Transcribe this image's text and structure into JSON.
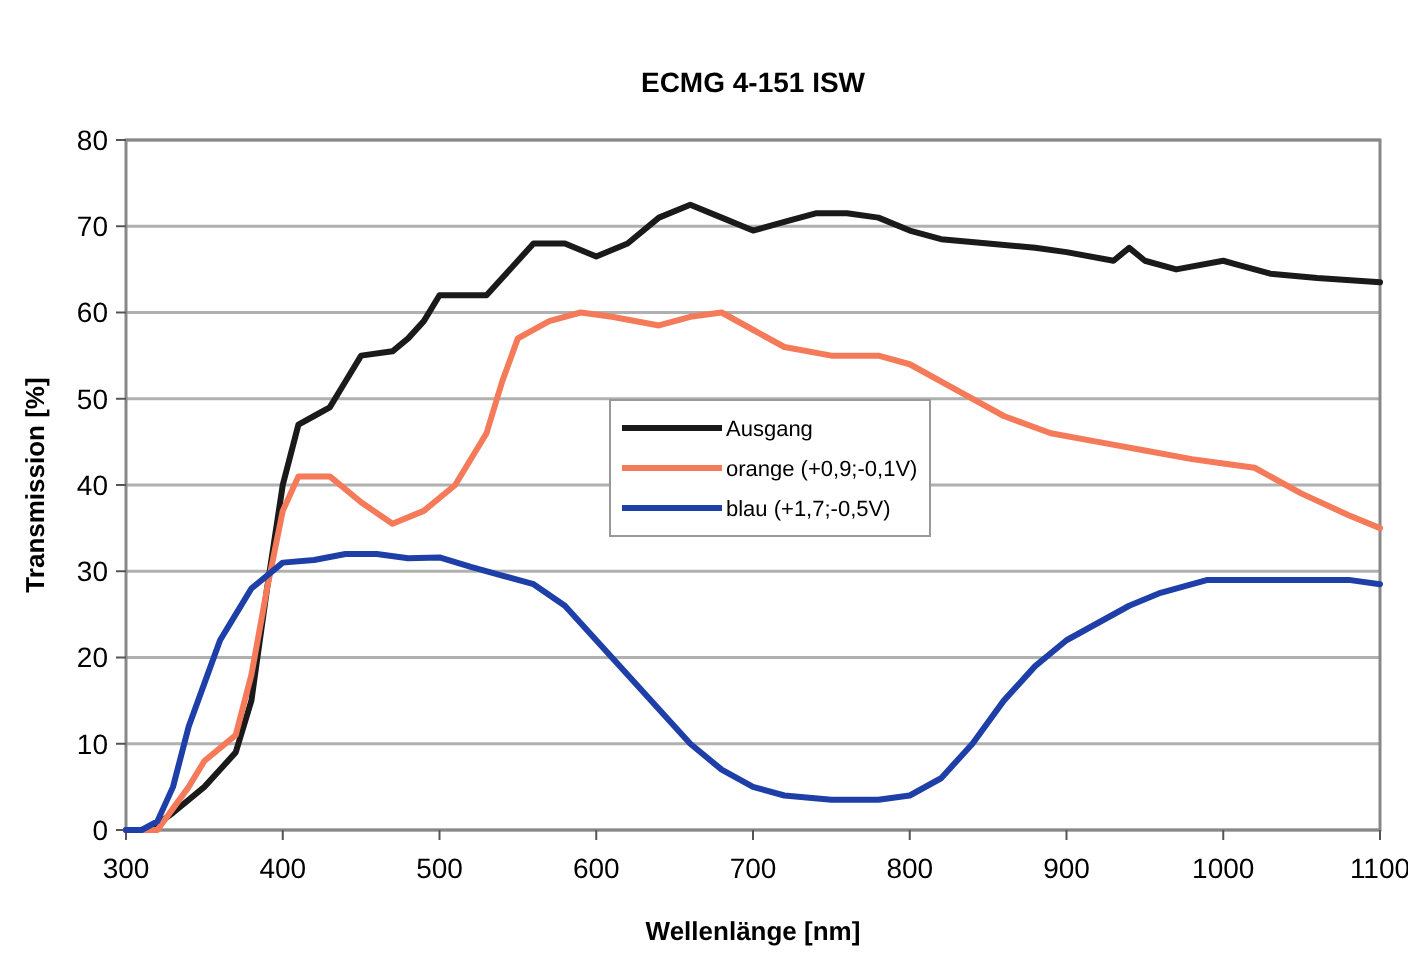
{
  "chart_data": {
    "type": "line",
    "title": "ECMG 4-151 ISW",
    "xlabel": "Wellenlänge [nm]",
    "ylabel": "Transmission [%]",
    "xlim": [
      300,
      1100
    ],
    "xticks": [
      300,
      400,
      500,
      600,
      700,
      800,
      900,
      1000,
      1100
    ],
    "ylim": [
      0,
      80
    ],
    "yticks": [
      0,
      10,
      20,
      30,
      40,
      50,
      60,
      70,
      80
    ],
    "grid": "y",
    "legend": "center",
    "line_style": "solid",
    "marker": "none",
    "series": [
      {
        "name": "Ausgang",
        "color": "#1a1a1a",
        "x": [
          300,
          315,
          330,
          350,
          370,
          380,
          390,
          400,
          410,
          420,
          430,
          440,
          450,
          470,
          480,
          490,
          500,
          520,
          530,
          540,
          560,
          580,
          600,
          620,
          640,
          660,
          680,
          700,
          720,
          740,
          760,
          780,
          800,
          820,
          850,
          880,
          900,
          930,
          940,
          950,
          970,
          1000,
          1010,
          1030,
          1060,
          1100
        ],
        "values": [
          0,
          0,
          2,
          5,
          9,
          15,
          28,
          40,
          47,
          48,
          49,
          52,
          55,
          55.5,
          57,
          59,
          62,
          62,
          62,
          64,
          68,
          68,
          66.5,
          68,
          71,
          72.5,
          71,
          69.5,
          70.5,
          71.5,
          71.5,
          71,
          69.5,
          68.5,
          68,
          67.5,
          67,
          66,
          67.5,
          66,
          65,
          66,
          65.5,
          64.5,
          64,
          63.5
        ]
      },
      {
        "name": "orange (+0,9;-0,1V)",
        "color": "#f47a5a",
        "x": [
          300,
          320,
          340,
          350,
          370,
          380,
          390,
          400,
          410,
          430,
          450,
          470,
          490,
          510,
          530,
          540,
          550,
          570,
          590,
          610,
          640,
          660,
          680,
          700,
          720,
          750,
          780,
          800,
          830,
          860,
          890,
          920,
          950,
          980,
          1000,
          1020,
          1050,
          1080,
          1100
        ],
        "values": [
          0,
          0,
          5,
          8,
          11,
          18,
          28,
          37,
          41,
          41,
          38,
          35.5,
          37,
          40,
          46,
          52,
          57,
          59,
          60,
          59.5,
          58.5,
          59.5,
          60,
          58,
          56,
          55,
          55,
          54,
          51,
          48,
          46,
          45,
          44,
          43,
          42.5,
          42,
          39,
          36.5,
          35
        ]
      },
      {
        "name": "blau (+1,7;-0,5V)",
        "color": "#1f3fa8",
        "x": [
          300,
          310,
          320,
          330,
          340,
          350,
          360,
          370,
          380,
          390,
          400,
          420,
          440,
          460,
          480,
          500,
          520,
          540,
          560,
          580,
          600,
          620,
          640,
          660,
          680,
          700,
          720,
          750,
          780,
          800,
          820,
          840,
          860,
          880,
          900,
          920,
          940,
          960,
          990,
          1010,
          1050,
          1080,
          1100
        ],
        "values": [
          0,
          0,
          1,
          5,
          12,
          17,
          22,
          25,
          28,
          29.5,
          31,
          31.3,
          32,
          32,
          31.5,
          31.6,
          30.5,
          29.5,
          28.5,
          26,
          22,
          18,
          14,
          10,
          7,
          5,
          4,
          3.5,
          3.5,
          4,
          6,
          10,
          15,
          19,
          22,
          24,
          26,
          27.5,
          29,
          29,
          29,
          29,
          28.5
        ]
      }
    ]
  }
}
